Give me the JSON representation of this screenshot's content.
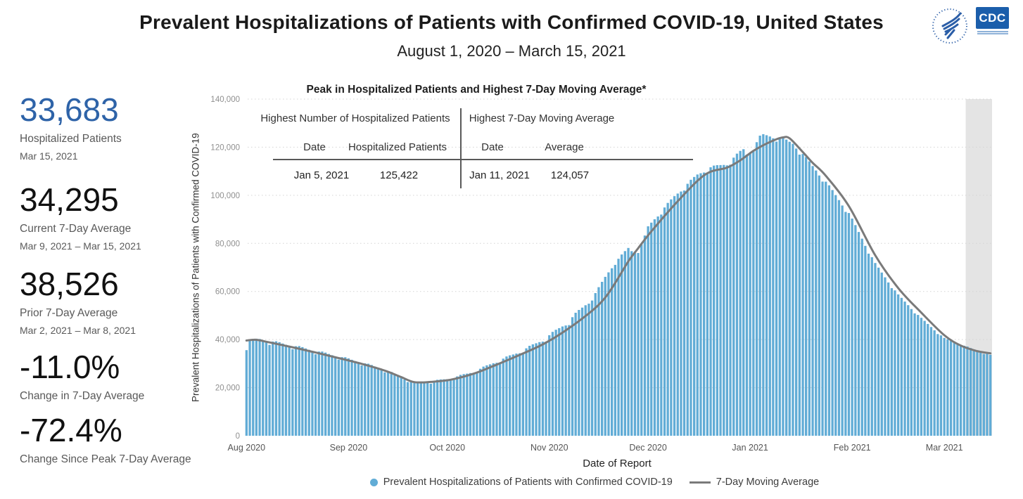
{
  "header": {
    "title": "Prevalent Hospitalizations of Patients with Confirmed COVID-19, United States",
    "subtitle": "August 1, 2020 – March 15, 2021",
    "cdc_logo_text": "CDC"
  },
  "stats": {
    "items": [
      {
        "value": "33,683",
        "label": "Hospitalized Patients",
        "sublabel": "Mar 15, 2021"
      },
      {
        "value": "34,295",
        "label": "Current 7-Day Average",
        "sublabel": "Mar 9, 2021 – Mar 15, 2021"
      },
      {
        "value": "38,526",
        "label": "Prior 7-Day Average",
        "sublabel": "Mar 2, 2021 – Mar 8, 2021"
      },
      {
        "value": "-11.0%",
        "label": "Change in 7-Day Average",
        "sublabel": ""
      },
      {
        "value": "-72.4%",
        "label": "Change Since Peak 7-Day Average",
        "sublabel": ""
      }
    ]
  },
  "overlay_table": {
    "title": "Peak in Hospitalized Patients and Highest 7-Day Moving Average*",
    "left": {
      "header": "Highest Number of Hospitalized Patients",
      "col1": "Date",
      "col2": "Hospitalized Patients",
      "val1": "Jan 5, 2021",
      "val2": "125,422"
    },
    "right": {
      "header": "Highest 7-Day Moving Average",
      "col1": "Date",
      "col2": "Average",
      "val1": "Jan 11, 2021",
      "val2": "124,057"
    }
  },
  "axes": {
    "ylabel": "Prevalent Hospitalizations of Patients with Confirmed COVID-19",
    "xlabel": "Date of Report"
  },
  "legend": {
    "bars_label": "Prevalent Hospitalizations of Patients with Confirmed COVID-19",
    "line_label": "7-Day Moving Average"
  },
  "colors": {
    "bar": "#61acd6",
    "moving_average_line": "#7a7a7a",
    "shaded_band": "#e4e4e4",
    "gridline": "#d4d4d4",
    "accent_blue": "#2e63a8",
    "cdc_blue": "#1b5eab"
  },
  "chart_data": {
    "type": "bar",
    "title": "Peak in Hospitalized Patients and Highest 7-Day Moving Average*",
    "xlabel": "Date of Report",
    "ylabel": "Prevalent Hospitalizations of Patients with Confirmed COVID-19",
    "ylim": [
      0,
      140000
    ],
    "grid": "horizontal dotted, every 20000",
    "legend_position": "bottom center",
    "y_ticks": [
      {
        "value": 0,
        "label": "0"
      },
      {
        "value": 20000,
        "label": "20,000"
      },
      {
        "value": 40000,
        "label": "40,000"
      },
      {
        "value": 60000,
        "label": "60,000"
      },
      {
        "value": 80000,
        "label": "80,000"
      },
      {
        "value": 100000,
        "label": "100,000"
      },
      {
        "value": 120000,
        "label": "120,000"
      },
      {
        "value": 140000,
        "label": "140,000"
      }
    ],
    "x_start_date": "2020-08-01",
    "x_end_date": "2021-03-15",
    "num_days": 227,
    "x_month_ticks": [
      {
        "label": "Aug 2020",
        "day": 0
      },
      {
        "label": "Sep 2020",
        "day": 31
      },
      {
        "label": "Oct 2020",
        "day": 61
      },
      {
        "label": "Nov 2020",
        "day": 92
      },
      {
        "label": "Dec 2020",
        "day": 122
      },
      {
        "label": "Jan 2021",
        "day": 153
      },
      {
        "label": "Feb 2021",
        "day": 184
      },
      {
        "label": "Mar 2021",
        "day": 212
      }
    ],
    "shaded_region": {
      "start_day": 219,
      "end_day": 226
    },
    "annotations": {
      "highest_daily": {
        "date": "Jan 5, 2021",
        "value": 125422
      },
      "highest_7day_average": {
        "date": "Jan 11, 2021",
        "value": 124057
      },
      "last_daily": {
        "date": "Mar 15, 2021",
        "value": 33683
      },
      "current_7day_average": 34295,
      "prior_7day_average": 38526
    },
    "series": [
      {
        "name": "Prevalent Hospitalizations of Patients with Confirmed COVID-19",
        "type": "bar",
        "color": "#61acd6",
        "note": "One bar per day, day 0 = Aug 1 2020 to day 226 = Mar 15 2021. Values estimated from chart; daily values are interpolated between anchor points, modulated by a weekly reporting pattern, with holiday dips and exact known values applied.",
        "daily_anchor_points": [
          [
            0,
            37000
          ],
          [
            1,
            39600
          ],
          [
            4,
            40100
          ],
          [
            8,
            39000
          ],
          [
            14,
            37400
          ],
          [
            21,
            35200
          ],
          [
            28,
            32900
          ],
          [
            35,
            30400
          ],
          [
            42,
            27400
          ],
          [
            47,
            24300
          ],
          [
            51,
            22100
          ],
          [
            56,
            22500
          ],
          [
            62,
            23800
          ],
          [
            69,
            26500
          ],
          [
            75,
            30200
          ],
          [
            83,
            34800
          ],
          [
            90,
            39700
          ],
          [
            97,
            46500
          ],
          [
            105,
            57000
          ],
          [
            109,
            66000
          ],
          [
            112,
            72000
          ],
          [
            116,
            78000
          ],
          [
            119,
            81500
          ],
          [
            123,
            88500
          ],
          [
            130,
            99500
          ],
          [
            137,
            108500
          ],
          [
            141,
            111500
          ],
          [
            146,
            113000
          ],
          [
            150,
            118000
          ],
          [
            152,
            120000
          ],
          [
            156,
            124200
          ],
          [
            157,
            125422
          ],
          [
            158,
            124800
          ],
          [
            160,
            124300
          ],
          [
            163,
            123300
          ],
          [
            166,
            121500
          ],
          [
            169,
            117000
          ],
          [
            172,
            112000
          ],
          [
            176,
            105500
          ],
          [
            183,
            92500
          ],
          [
            191,
            71500
          ],
          [
            198,
            58500
          ],
          [
            205,
            48800
          ],
          [
            212,
            40500
          ],
          [
            216,
            38400
          ],
          [
            219,
            36900
          ],
          [
            222,
            35200
          ],
          [
            226,
            33683
          ]
        ],
        "weekly_pattern_multipliers": [
          0.962,
          1.004,
          1.014,
          1.011,
          1.004,
          0.998,
          0.986
        ],
        "weekly_damp_after_day": 105,
        "weekly_damp_factor": 0.35,
        "special_day_multipliers": {
          "117": 0.97,
          "118": 0.95,
          "119": 0.945,
          "120": 0.955,
          "121": 0.975,
          "152": 0.975,
          "153": 0.975,
          "154": 0.985,
          "155": 0.99
        },
        "exact_values": {
          "157": 125422,
          "226": 33683
        }
      },
      {
        "name": "7-Day Moving Average",
        "type": "line",
        "color": "#7a7a7a",
        "peak": {
          "date": "Jan 11, 2021",
          "value": 124057
        },
        "end_value": 34295,
        "anchor_points": [
          [
            0,
            39600
          ],
          [
            3,
            39900
          ],
          [
            7,
            38800
          ],
          [
            14,
            36800
          ],
          [
            21,
            34600
          ],
          [
            28,
            32300
          ],
          [
            35,
            29900
          ],
          [
            42,
            27100
          ],
          [
            47,
            24400
          ],
          [
            51,
            22300
          ],
          [
            56,
            22400
          ],
          [
            62,
            23300
          ],
          [
            69,
            25800
          ],
          [
            75,
            29000
          ],
          [
            83,
            33600
          ],
          [
            90,
            38000
          ],
          [
            97,
            43800
          ],
          [
            105,
            52000
          ],
          [
            109,
            57500
          ],
          [
            112,
            63500
          ],
          [
            116,
            72500
          ],
          [
            119,
            78000
          ],
          [
            123,
            85000
          ],
          [
            130,
            96000
          ],
          [
            137,
            106000
          ],
          [
            141,
            109800
          ],
          [
            146,
            111500
          ],
          [
            150,
            114500
          ],
          [
            154,
            118500
          ],
          [
            158,
            121500
          ],
          [
            161,
            123300
          ],
          [
            163,
            124057
          ],
          [
            165,
            123700
          ],
          [
            169,
            118000
          ],
          [
            172,
            113500
          ],
          [
            176,
            108100
          ],
          [
            183,
            95500
          ],
          [
            191,
            75100
          ],
          [
            198,
            61400
          ],
          [
            205,
            51200
          ],
          [
            212,
            41800
          ],
          [
            217,
            37500
          ],
          [
            222,
            35200
          ],
          [
            226,
            34295
          ]
        ]
      }
    ]
  }
}
